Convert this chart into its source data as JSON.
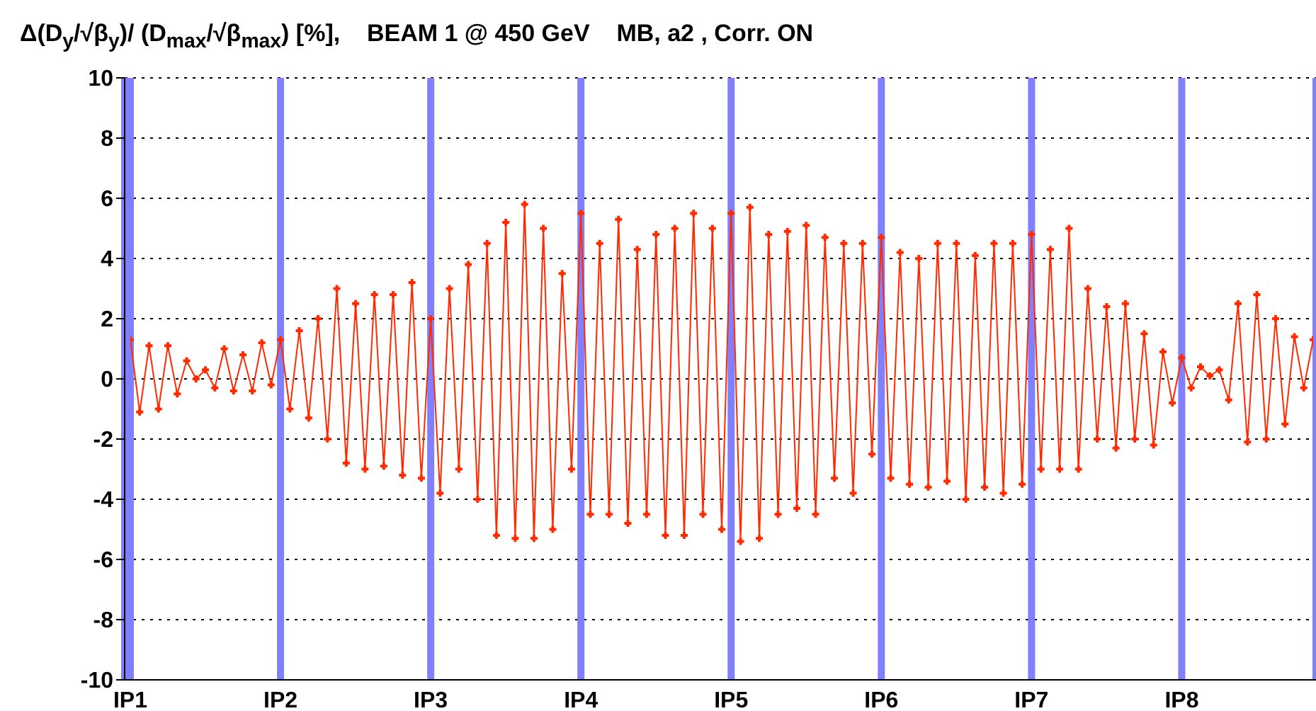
{
  "chart_data": {
    "type": "line",
    "title": "Δ(D$_{y}$/√β$_{y}$)/ (D$_{max}$/√β$_{max}$) [%],    BEAM 1 @ 450 GeV    MB, a2 , Corr. ON",
    "categories": [
      "IP1",
      null,
      null,
      null,
      null,
      null,
      null,
      null,
      null,
      null,
      null,
      null,
      null,
      null,
      null,
      null,
      "IP2",
      null,
      null,
      null,
      null,
      null,
      null,
      null,
      null,
      null,
      null,
      null,
      null,
      null,
      null,
      null,
      "IP3",
      null,
      null,
      null,
      null,
      null,
      null,
      null,
      null,
      null,
      null,
      null,
      null,
      null,
      null,
      null,
      "IP4",
      null,
      null,
      null,
      null,
      null,
      null,
      null,
      null,
      null,
      null,
      null,
      null,
      null,
      null,
      null,
      "IP5",
      null,
      null,
      null,
      null,
      null,
      null,
      null,
      null,
      null,
      null,
      null,
      null,
      null,
      null,
      null,
      "IP6",
      null,
      null,
      null,
      null,
      null,
      null,
      null,
      null,
      null,
      null,
      null,
      null,
      null,
      null,
      null,
      "IP7",
      null,
      null,
      null,
      null,
      null,
      null,
      null,
      null,
      null,
      null,
      null,
      null,
      null,
      null,
      null,
      "IP8",
      null,
      null,
      null,
      null,
      null,
      null,
      null,
      null,
      null,
      null,
      null,
      null,
      null,
      null
    ],
    "series": [
      {
        "color": "#ff2a00",
        "values": [
          1.3,
          -1.1,
          1.1,
          -1.0,
          1.1,
          -0.5,
          0.6,
          0.0,
          0.3,
          -0.3,
          1.0,
          -0.4,
          0.8,
          -0.4,
          1.2,
          -0.2,
          1.3,
          -1.0,
          1.6,
          -1.3,
          2.0,
          -2.0,
          3.0,
          -2.8,
          2.5,
          -3.0,
          2.8,
          -2.9,
          2.8,
          -3.2,
          3.2,
          -3.3,
          2.0,
          -3.8,
          3.0,
          -3.0,
          3.8,
          -4.0,
          4.5,
          -5.2,
          5.2,
          -5.3,
          5.8,
          -5.3,
          5.0,
          -5.0,
          3.5,
          -3.0,
          5.5,
          -4.5,
          4.5,
          -4.5,
          5.3,
          -4.8,
          4.3,
          -4.5,
          4.8,
          -5.2,
          5.0,
          -5.2,
          5.5,
          -4.5,
          5.0,
          -5.0,
          5.5,
          -5.4,
          5.7,
          -5.3,
          4.8,
          -4.5,
          4.9,
          -4.3,
          5.1,
          -4.5,
          4.7,
          -3.3,
          4.5,
          -3.8,
          4.5,
          -2.5,
          4.7,
          -3.3,
          4.2,
          -3.5,
          4.0,
          -3.6,
          4.5,
          -3.4,
          4.5,
          -4.0,
          4.1,
          -3.6,
          4.5,
          -3.8,
          4.5,
          -3.5,
          4.8,
          -3.0,
          4.3,
          -3.0,
          5.0,
          -3.0,
          3.0,
          -2.0,
          2.4,
          -2.3,
          2.5,
          -2.0,
          1.5,
          -2.2,
          0.9,
          -0.8,
          0.7,
          -0.3,
          0.4,
          0.1,
          0.3,
          -0.7,
          2.5,
          -2.1,
          2.8,
          -2.0,
          2.0,
          -1.5,
          1.4,
          -0.3,
          1.3
        ]
      }
    ],
    "ylim": [
      -10,
      10
    ],
    "yticks": [
      -10,
      -8,
      -6,
      -4,
      -2,
      0,
      2,
      4,
      6,
      8,
      10
    ],
    "grid": true,
    "marker": "cross",
    "line_style": "solid"
  }
}
